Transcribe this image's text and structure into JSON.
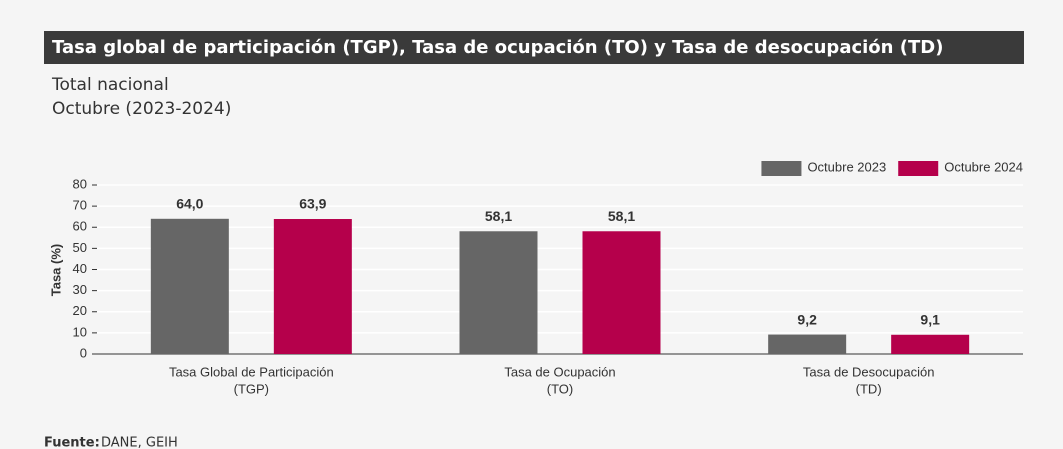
{
  "chart_data": {
    "type": "bar",
    "title": "Tasa global de participación (TGP), Tasa de ocupación (TO) y Tasa de desocupación (TD)",
    "subtitle": [
      "Total nacional",
      "Octubre (2023-2024)"
    ],
    "y_label": "Tasa (%)",
    "categories": [
      [
        "Tasa Global de Participación",
        "(TGP)"
      ],
      [
        "Tasa de Ocupación",
        "(TO)"
      ],
      [
        "Tasa de Desocupación",
        "(TD)"
      ]
    ],
    "series": [
      {
        "name": "Octubre 2023",
        "color": "#666666",
        "values": [
          64.0,
          58.1,
          9.2
        ],
        "value_labels": [
          "64,0",
          "58,1",
          "9,2"
        ]
      },
      {
        "name": "Octubre 2024",
        "color": "#b5004b",
        "values": [
          63.9,
          58.1,
          9.1
        ],
        "value_labels": [
          "63,9",
          "58,1",
          "9,1"
        ]
      }
    ],
    "ylim": [
      0,
      80
    ],
    "yticks": [
      0,
      10,
      20,
      30,
      40,
      50,
      60,
      70,
      80
    ],
    "grid": true,
    "legend": "top-right",
    "source_label": "Fuente:",
    "source": "DANE, GEIH"
  }
}
